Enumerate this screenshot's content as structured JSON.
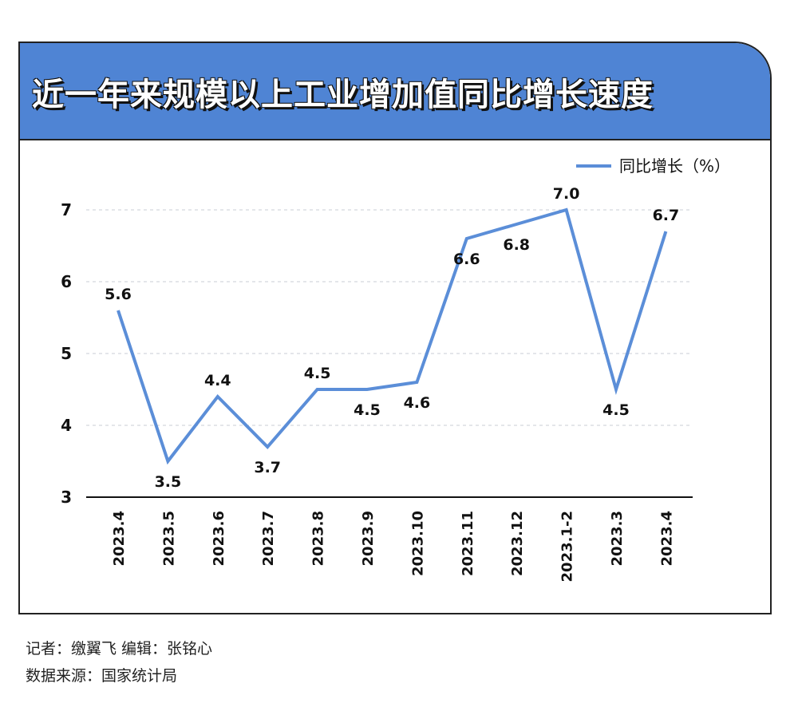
{
  "title": "近一年来规模以上工业增加值同比增长速度",
  "footer": {
    "credits": "记者：缴翼飞  编辑：张铭心",
    "source": "数据来源：国家统计局"
  },
  "colors": {
    "accent": "#4f84d4",
    "line": "#5b8ed8",
    "border": "#222222"
  },
  "chart_data": {
    "type": "line",
    "categories": [
      "2023.4",
      "2023.5",
      "2023.6",
      "2023.7",
      "2023.8",
      "2023.9",
      "2023.10",
      "2023.11",
      "2023.12",
      "2023.1-2",
      "2023.3",
      "2023.4"
    ],
    "series": [
      {
        "name": "同比增长（%）",
        "values": [
          5.6,
          3.5,
          4.4,
          3.7,
          4.5,
          4.5,
          4.6,
          6.6,
          6.8,
          7.0,
          4.5,
          6.7
        ],
        "labels": [
          "5.6",
          "3.5",
          "4.4",
          "3.7",
          "4.5",
          "4.5",
          "4.6",
          "6.6",
          "6.8",
          "7.0",
          "4.5",
          "6.7"
        ]
      }
    ],
    "y_ticks": [
      "3",
      "4",
      "5",
      "6",
      "7"
    ],
    "ylim": [
      3,
      7
    ],
    "grid": "horizontal-dashed",
    "legend": "top-right"
  }
}
